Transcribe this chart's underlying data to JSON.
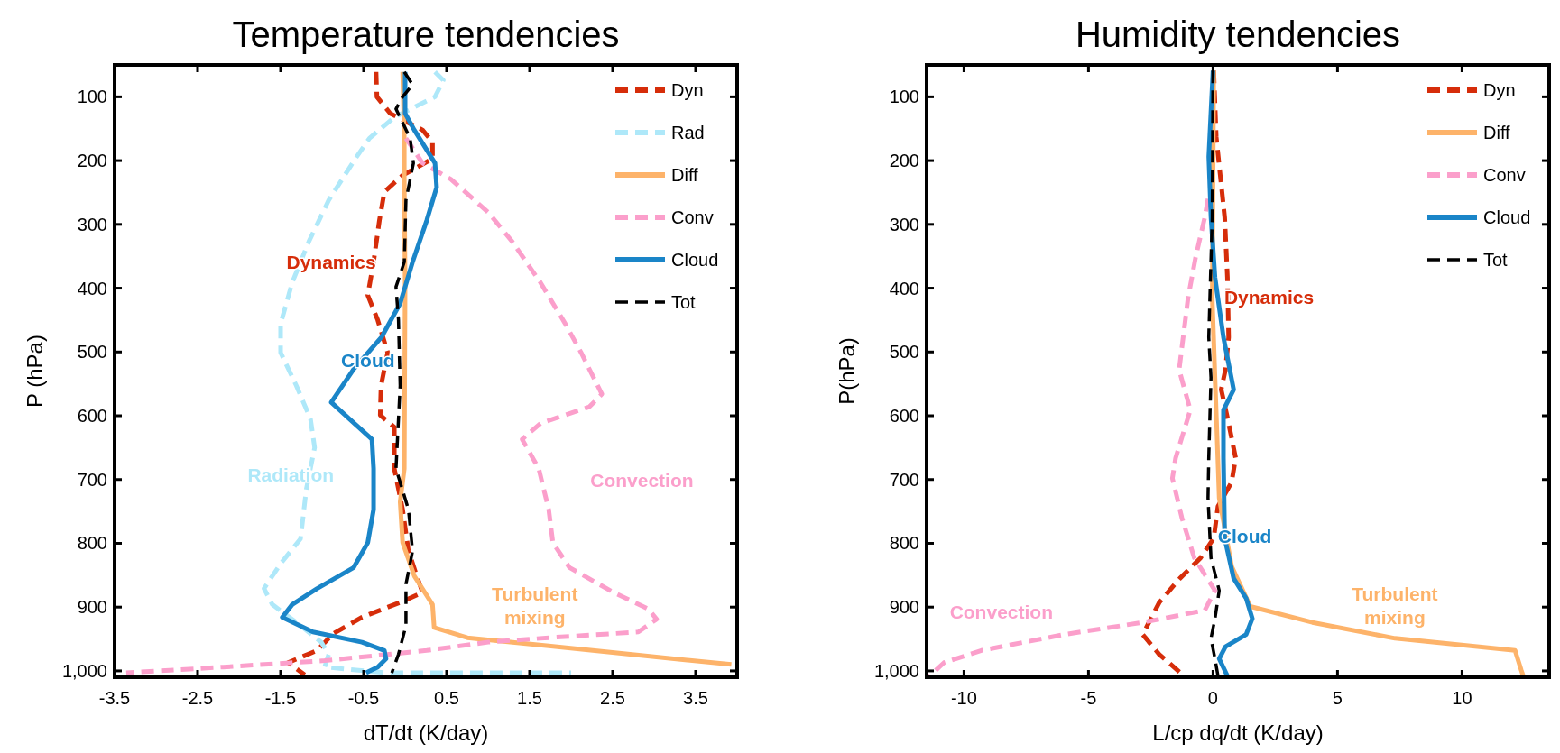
{
  "chart_data": [
    {
      "type": "line",
      "title": "Temperature tendencies",
      "xlabel": "dT/dt (K/day)",
      "ylabel": "P (hPa)",
      "xlim": [
        -3.5,
        4.0
      ],
      "ylim": [
        1010,
        50
      ],
      "xticks": [
        -3.5,
        -2.5,
        -1.5,
        -0.5,
        0.5,
        1.5,
        2.5,
        3.5
      ],
      "yticks": [
        100,
        200,
        300,
        400,
        500,
        600,
        700,
        800,
        900,
        {
          "value": 1000,
          "label": "1,000"
        }
      ],
      "grid": false,
      "legend": "top right",
      "marker": "none",
      "series": [
        {
          "name": "Dyn",
          "color": "#d62d0a",
          "line_style": "dashed",
          "x": [
            -0.35,
            -0.34,
            -0.18,
            0.21,
            0.33,
            0.33,
            -0.03,
            -0.25,
            -0.31,
            -0.38,
            -0.45,
            -0.33,
            -0.21,
            -0.29,
            -0.3,
            -0.13,
            -0.13,
            -0.03,
            0.04,
            0.14,
            0.21,
            -0.01,
            -0.52,
            -0.87,
            -1.06,
            -1.41,
            -1.21
          ],
          "values": [
            61,
            100,
            126,
            152,
            171,
            197,
            223,
            249,
            294,
            359,
            411,
            450,
            501,
            553,
            599,
            618,
            683,
            747,
            812,
            851,
            877,
            890,
            916,
            942,
            968,
            987,
            1006
          ]
        },
        {
          "name": "Rad",
          "color": "#aee8f9",
          "line_style": "dashed",
          "x": [
            0.36,
            0.46,
            0.36,
            -0.13,
            -0.43,
            -0.6,
            -0.92,
            -1.16,
            -1.36,
            -1.5,
            -1.5,
            -1.31,
            -1.14,
            -1.09,
            -1.19,
            -1.26,
            -1.5,
            -1.7,
            -1.6,
            -1.26,
            -1.01,
            -0.92,
            -0.97,
            -0.23,
            2.0
          ],
          "values": [
            61,
            74,
            100,
            132,
            165,
            197,
            262,
            327,
            391,
            456,
            501,
            553,
            605,
            650,
            715,
            793,
            832,
            871,
            896,
            929,
            955,
            974,
            994,
            1003,
            1003
          ]
        },
        {
          "name": "Diff",
          "color": "#fdb36a",
          "line_style": "solid",
          "x": [
            -0.03,
            -0.01,
            -0.01,
            0,
            -0.01,
            -0.06,
            -0.03,
            0.11,
            0.33,
            0.35,
            0.75,
            1.73,
            2.71,
            3.93
          ],
          "values": [
            61,
            165,
            229,
            391,
            683,
            735,
            799,
            851,
            896,
            932,
            948,
            961,
            974,
            990
          ]
        },
        {
          "name": "Conv",
          "color": "#fb9fcb",
          "line_style": "dashed",
          "x": [
            0.01,
            0.21,
            0.55,
            1.0,
            1.29,
            1.63,
            1.93,
            2.12,
            2.37,
            2.22,
            1.63,
            1.41,
            1.61,
            1.73,
            1.78,
            1.98,
            2.51,
            2.93,
            3.03,
            2.81,
            1.73,
            1.0,
            0.26,
            -0.97,
            -2.19,
            -3.36
          ],
          "values": [
            165,
            204,
            229,
            281,
            327,
            391,
            456,
            501,
            566,
            586,
            612,
            637,
            683,
            747,
            799,
            838,
            877,
            903,
            919,
            939,
            948,
            955,
            968,
            984,
            994,
            1003
          ]
        },
        {
          "name": "Cloud",
          "color": "#1a85c8",
          "line_style": "solid",
          "x": [
            0,
            0,
            0.11,
            0.36,
            0.38,
            0.26,
            0.09,
            -0.06,
            -0.28,
            -0.62,
            -0.89,
            -0.67,
            -0.4,
            -0.38,
            -0.38,
            -0.45,
            -0.62,
            -1.06,
            -1.36,
            -1.48,
            -1.11,
            -0.52,
            -0.25,
            -0.23,
            -0.33,
            -0.47
          ],
          "values": [
            61,
            126,
            152,
            204,
            242,
            294,
            359,
            424,
            476,
            527,
            579,
            605,
            637,
            683,
            747,
            799,
            838,
            871,
            896,
            916,
            939,
            955,
            968,
            981,
            994,
            1003
          ]
        },
        {
          "name": "Tot",
          "color": "#000000",
          "line_style": "dashed",
          "x": [
            -0.01,
            0.09,
            -0.03,
            -0.11,
            0.06,
            0.1,
            0.01,
            -0.01,
            -0.11,
            -0.08,
            -0.06,
            -0.11,
            0.04,
            0.09,
            0.01,
            0.01,
            -0.08,
            -0.16
          ],
          "values": [
            61,
            81,
            100,
            119,
            165,
            204,
            262,
            359,
            398,
            450,
            553,
            683,
            747,
            812,
            864,
            929,
            974,
            1003
          ]
        }
      ],
      "annotations": [
        "Dynamics",
        "Cloud",
        "Radiation",
        "Convection",
        "Turbulent\nmixing"
      ]
    },
    {
      "type": "line",
      "title": "Humidity tendencies",
      "xlabel": "L/cp dq/dt (K/day)",
      "ylabel": "P(hPa)",
      "xlim": [
        -11.5,
        13.5
      ],
      "ylim": [
        1010,
        50
      ],
      "xticks": [
        -10,
        -5,
        0,
        5,
        10
      ],
      "yticks": [
        100,
        200,
        300,
        400,
        500,
        600,
        700,
        800,
        900,
        {
          "value": 1000,
          "label": "1,000"
        }
      ],
      "grid": false,
      "legend": "top right",
      "marker": "none",
      "series": [
        {
          "name": "Dyn",
          "color": "#d62d0a",
          "line_style": "dashed",
          "x": [
            0.03,
            0.13,
            0.3,
            0.47,
            0.58,
            0.63,
            0.5,
            0.33,
            0.58,
            0.91,
            0.75,
            0.2,
            0.03,
            -0.5,
            -1.33,
            -2.16,
            -2.82,
            -2.16,
            -1.16
          ],
          "values": [
            59,
            163,
            226,
            289,
            383,
            477,
            528,
            559,
            603,
            666,
            704,
            742,
            792,
            823,
            855,
            893,
            943,
            974,
            1008
          ]
        },
        {
          "name": "Diff",
          "color": "#fdb36a",
          "line_style": "solid",
          "x": [
            0.03,
            -0.03,
            0.08,
            0.25,
            0.75,
            1.5,
            3.99,
            7.31,
            12.13,
            12.38,
            12.46
          ],
          "values": [
            59,
            415,
            540,
            729,
            836,
            899,
            924,
            949,
            968,
            999,
            1008
          ]
        },
        {
          "name": "Conv",
          "color": "#fb9fcb",
          "line_style": "dashed",
          "x": [
            -0.2,
            -0.33,
            -0.7,
            -1.0,
            -1.36,
            -0.91,
            -1.5,
            -1.63,
            -1.25,
            -0.75,
            0.08,
            -0.33,
            -2.82,
            -5.98,
            -9.3,
            -10.8,
            -11.38
          ],
          "values": [
            260,
            289,
            352,
            415,
            528,
            591,
            666,
            698,
            760,
            823,
            874,
            905,
            924,
            943,
            968,
            987,
            1008
          ]
        },
        {
          "name": "Cloud",
          "color": "#1a85c8",
          "line_style": "solid",
          "x": [
            0,
            -0.17,
            -0.08,
            0.08,
            0.42,
            0.83,
            0.42,
            0.42,
            0.47,
            0.83,
            1.33,
            1.58,
            1.33,
            0.5,
            0.25,
            0.58
          ],
          "values": [
            59,
            194,
            289,
            383,
            477,
            559,
            591,
            666,
            792,
            855,
            886,
            918,
            943,
            962,
            981,
            1008
          ]
        },
        {
          "name": "Tot",
          "color": "#000000",
          "line_style": "dashed",
          "x": [
            0,
            -0.03,
            -0.17,
            -0.08,
            -0.17,
            -0.2,
            -0.08,
            0.25,
            0.08,
            -0.08,
            0.08,
            0.2
          ],
          "values": [
            59,
            289,
            477,
            540,
            666,
            729,
            823,
            874,
            918,
            949,
            981,
            1008
          ]
        }
      ],
      "annotations": [
        "Dynamics",
        "Cloud",
        "Convection",
        "Turbulent\nmixing"
      ]
    }
  ]
}
